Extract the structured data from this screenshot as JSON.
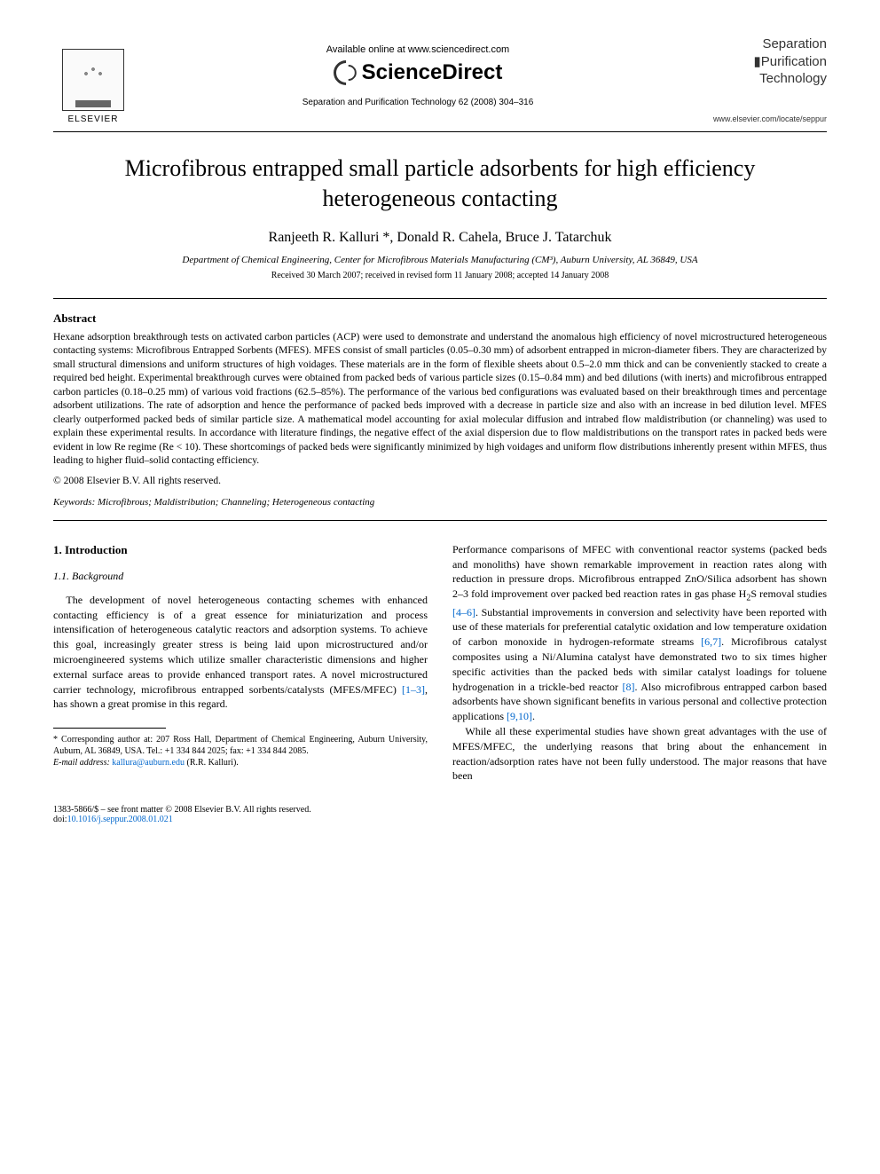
{
  "header": {
    "elsevier_label": "ELSEVIER",
    "available_online": "Available online at www.sciencedirect.com",
    "sciencedirect": "ScienceDirect",
    "journal_ref": "Separation and Purification Technology 62 (2008) 304–316",
    "journal_box": {
      "line1": "Separation",
      "line2": "▮Purification",
      "line3": "Technology"
    },
    "journal_url": "www.elsevier.com/locate/seppur"
  },
  "title": "Microfibrous entrapped small particle adsorbents for high efficiency heterogeneous contacting",
  "authors": "Ranjeeth R. Kalluri *, Donald R. Cahela, Bruce J. Tatarchuk",
  "affiliation": "Department of Chemical Engineering, Center for Microfibrous Materials Manufacturing (CM³), Auburn University, AL 36849, USA",
  "dates": "Received 30 March 2007; received in revised form 11 January 2008; accepted 14 January 2008",
  "abstract": {
    "heading": "Abstract",
    "body": "Hexane adsorption breakthrough tests on activated carbon particles (ACP) were used to demonstrate and understand the anomalous high efficiency of novel microstructured heterogeneous contacting systems: Microfibrous Entrapped Sorbents (MFES). MFES consist of small particles (0.05–0.30 mm) of adsorbent entrapped in micron-diameter fibers. They are characterized by small structural dimensions and uniform structures of high voidages. These materials are in the form of flexible sheets about 0.5–2.0 mm thick and can be conveniently stacked to create a required bed height. Experimental breakthrough curves were obtained from packed beds of various particle sizes (0.15–0.84 mm) and bed dilutions (with inerts) and microfibrous entrapped carbon particles (0.18–0.25 mm) of various void fractions (62.5–85%). The performance of the various bed configurations was evaluated based on their breakthrough times and percentage adsorbent utilizations. The rate of adsorption and hence the performance of packed beds improved with a decrease in particle size and also with an increase in bed dilution level. MFES clearly outperformed packed beds of similar particle size. A mathematical model accounting for axial molecular diffusion and intrabed flow maldistribution (or channeling) was used to explain these experimental results. In accordance with literature findings, the negative effect of the axial dispersion due to flow maldistributions on the transport rates in packed beds were evident in low Re regime (Re < 10). These shortcomings of packed beds were significantly minimized by high voidages and uniform flow distributions inherently present within MFES, thus leading to higher fluid–solid contacting efficiency.",
    "copyright": "© 2008 Elsevier B.V. All rights reserved."
  },
  "keywords": {
    "label": "Keywords:",
    "list": "Microfibrous; Maldistribution; Channeling; Heterogeneous contacting"
  },
  "section1": {
    "heading": "1.  Introduction",
    "sub": "1.1.  Background",
    "left_para": "The development of novel heterogeneous contacting schemes with enhanced contacting efficiency is of a great essence for miniaturization and process intensification of heterogeneous catalytic reactors and adsorption systems. To achieve this goal, increasingly greater stress is being laid upon microstructured and/or microengineered systems which utilize smaller characteristic dimensions and higher external surface areas to provide enhanced transport rates. A novel microstructured carrier technology, microfibrous entrapped sorbents/catalysts (MFES/MFEC) ",
    "left_para_tail": ", has shown a great promise in this regard.",
    "ref1": "[1–3]",
    "right_para1_a": "Performance comparisons of MFEC with conventional reactor systems (packed beds and monoliths) have shown remarkable improvement in reaction rates along with reduction in pressure drops. Microfibrous entrapped ZnO/Silica adsorbent has shown 2–3 fold improvement over packed bed reaction rates in gas phase H",
    "right_para1_sub": "2",
    "right_para1_b": "S removal studies ",
    "ref2": "[4–6]",
    "right_para1_c": ". Substantial improvements in conversion and selectivity have been reported with use of these materials for preferential catalytic oxidation and low temperature oxidation of carbon monoxide in hydrogen-reformate streams ",
    "ref3": "[6,7]",
    "right_para1_d": ". Microfibrous catalyst composites using a Ni/Alumina catalyst have demonstrated two to six times higher specific activities than the packed beds with similar catalyst loadings for toluene hydrogenation in a trickle-bed reactor ",
    "ref4": "[8]",
    "right_para1_e": ". Also microfibrous entrapped carbon based adsorbents have shown significant benefits in various personal and collective protection applications ",
    "ref5": "[9,10]",
    "right_para1_f": ".",
    "right_para2": "While all these experimental studies have shown great advantages with the use of MFES/MFEC, the underlying reasons that bring about the enhancement in reaction/adsorption rates have not been fully understood. The major reasons that have been"
  },
  "footnote": {
    "corr": "* Corresponding author at: 207 Ross Hall, Department of Chemical Engineering, Auburn University, Auburn, AL 36849, USA. Tel.: +1 334 844 2025; fax: +1 334 844 2085.",
    "email_label": "E-mail address:",
    "email": "kallura@auburn.edu",
    "email_tail": "(R.R. Kalluri)."
  },
  "footer": {
    "left1": "1383-5866/$ – see front matter © 2008 Elsevier B.V. All rights reserved.",
    "doi_label": "doi:",
    "doi": "10.1016/j.seppur.2008.01.021"
  }
}
